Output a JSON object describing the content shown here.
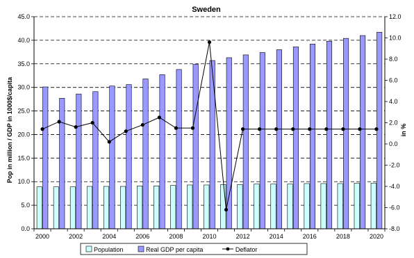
{
  "chart_data": {
    "type": "bar",
    "title": "Sweden",
    "ylabel": "Pop in million / GDP in 1000$/capita",
    "y2label": "in %",
    "x": [
      2000,
      2001,
      2002,
      2003,
      2004,
      2005,
      2006,
      2007,
      2008,
      2009,
      2010,
      2011,
      2012,
      2013,
      2014,
      2015,
      2016,
      2017,
      2018,
      2019,
      2020
    ],
    "xticks": [
      "2000",
      "2002",
      "2004",
      "2006",
      "2008",
      "2010",
      "2012",
      "2014",
      "2016",
      "2018",
      "2020"
    ],
    "ylim": [
      0,
      45
    ],
    "yticks": [
      "0.0",
      "5.0",
      "10.0",
      "15.0",
      "20.0",
      "25.0",
      "30.0",
      "35.0",
      "40.0",
      "45.0"
    ],
    "y2lim": [
      -8,
      12
    ],
    "y2ticks": [
      "-8.0",
      "-6.0",
      "-4.0",
      "-2.0",
      "0.0",
      "2.0",
      "4.0",
      "6.0",
      "8.0",
      "10.0",
      "12.0"
    ],
    "grid": "horizontal dashed",
    "legend_position": "bottom",
    "series": [
      {
        "name": "Population",
        "type": "bar",
        "axis": "left",
        "color": "#ccffff",
        "values": [
          8.9,
          8.9,
          8.9,
          9.0,
          9.0,
          9.0,
          9.1,
          9.1,
          9.2,
          9.3,
          9.3,
          9.4,
          9.4,
          9.5,
          9.5,
          9.5,
          9.6,
          9.6,
          9.6,
          9.7,
          9.7
        ]
      },
      {
        "name": "Real GDP per capita",
        "type": "bar",
        "axis": "left",
        "color": "#9999ff",
        "values": [
          30.1,
          27.7,
          28.6,
          29.1,
          30.3,
          30.6,
          31.8,
          32.7,
          33.8,
          34.9,
          35.7,
          36.3,
          36.9,
          37.4,
          38.0,
          38.6,
          39.2,
          39.8,
          40.4,
          41.0,
          41.7
        ]
      },
      {
        "name": "Deflator",
        "type": "line",
        "axis": "right",
        "color": "#000000",
        "values": [
          1.4,
          2.1,
          1.6,
          2.0,
          0.2,
          1.2,
          1.8,
          2.5,
          1.5,
          1.5,
          9.6,
          -6.2,
          1.4,
          1.4,
          1.4,
          1.4,
          1.4,
          1.4,
          1.4,
          1.4,
          1.4
        ]
      }
    ]
  }
}
